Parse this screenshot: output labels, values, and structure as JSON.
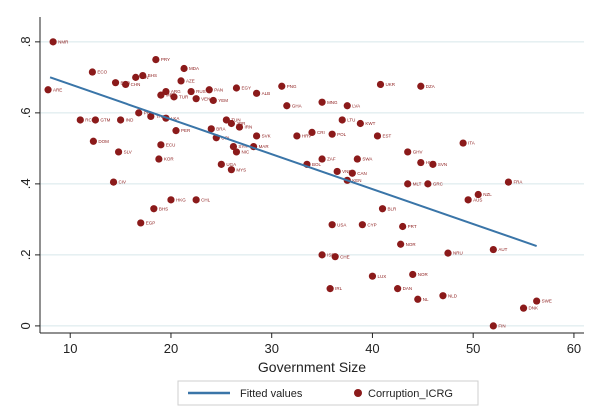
{
  "chart_data": {
    "type": "scatter",
    "xlabel": "Government Size",
    "ylabel": "",
    "xlim": [
      7,
      61
    ],
    "ylim": [
      -0.02,
      0.87
    ],
    "xticks": [
      10,
      20,
      30,
      40,
      50,
      60
    ],
    "yticks": [
      0,
      0.2,
      0.4,
      0.6,
      0.8
    ],
    "ytick_labels": [
      "0",
      ".2",
      ".4",
      ".6",
      ".8"
    ],
    "grid": true,
    "legend_position": "bottom",
    "colors": {
      "points": "#8b1a1a",
      "fit_line": "#3a75a8",
      "grid": "#d7e7ea"
    },
    "series": [
      {
        "name": "Fitted values",
        "type": "line",
        "x": [
          8,
          56.3
        ],
        "y": [
          0.7,
          0.225
        ]
      },
      {
        "name": "Corruption_ICRG",
        "type": "scatter",
        "points": [
          {
            "x": 8.3,
            "y": 0.8,
            "label": "NMR"
          },
          {
            "x": 7.8,
            "y": 0.665,
            "label": "ARE"
          },
          {
            "x": 12.2,
            "y": 0.715,
            "label": "ECO"
          },
          {
            "x": 11.0,
            "y": 0.58,
            "label": "RCT"
          },
          {
            "x": 12.5,
            "y": 0.58,
            "label": "GTM"
          },
          {
            "x": 12.3,
            "y": 0.52,
            "label": "DOM"
          },
          {
            "x": 14.5,
            "y": 0.685,
            "label": "BGD"
          },
          {
            "x": 15.0,
            "y": 0.58,
            "label": "IND"
          },
          {
            "x": 15.5,
            "y": 0.68,
            "label": "CHN"
          },
          {
            "x": 16.5,
            "y": 0.7,
            "label": "IDN"
          },
          {
            "x": 17.2,
            "y": 0.705,
            "label": "BHS"
          },
          {
            "x": 18.5,
            "y": 0.75,
            "label": "PRY"
          },
          {
            "x": 14.8,
            "y": 0.49,
            "label": "SLV"
          },
          {
            "x": 14.3,
            "y": 0.405,
            "label": "CIV"
          },
          {
            "x": 16.8,
            "y": 0.6,
            "label": "PHL"
          },
          {
            "x": 18.0,
            "y": 0.59,
            "label": "THA"
          },
          {
            "x": 19.0,
            "y": 0.65,
            "label": "MEX"
          },
          {
            "x": 19.5,
            "y": 0.66,
            "label": "ARG"
          },
          {
            "x": 20.3,
            "y": 0.645,
            "label": "TUR"
          },
          {
            "x": 21.0,
            "y": 0.69,
            "label": "AZE"
          },
          {
            "x": 21.3,
            "y": 0.725,
            "label": "MDA"
          },
          {
            "x": 22.0,
            "y": 0.66,
            "label": "RUS"
          },
          {
            "x": 22.5,
            "y": 0.64,
            "label": "VEN"
          },
          {
            "x": 23.8,
            "y": 0.665,
            "label": "PAN"
          },
          {
            "x": 24.2,
            "y": 0.635,
            "label": "YEM"
          },
          {
            "x": 26.5,
            "y": 0.67,
            "label": "EGY"
          },
          {
            "x": 28.5,
            "y": 0.655,
            "label": "ALB"
          },
          {
            "x": 31.0,
            "y": 0.675,
            "label": "PNG"
          },
          {
            "x": 31.5,
            "y": 0.62,
            "label": "GHA"
          },
          {
            "x": 35.0,
            "y": 0.63,
            "label": "MNG"
          },
          {
            "x": 37.5,
            "y": 0.62,
            "label": "LVA"
          },
          {
            "x": 40.8,
            "y": 0.68,
            "label": "UKR"
          },
          {
            "x": 44.8,
            "y": 0.675,
            "label": "DZA"
          },
          {
            "x": 19.5,
            "y": 0.585,
            "label": "LKA"
          },
          {
            "x": 20.5,
            "y": 0.55,
            "label": "PER"
          },
          {
            "x": 19.0,
            "y": 0.51,
            "label": "ECU"
          },
          {
            "x": 18.8,
            "y": 0.47,
            "label": "KOR"
          },
          {
            "x": 24.0,
            "y": 0.555,
            "label": "BRA"
          },
          {
            "x": 24.5,
            "y": 0.53,
            "label": "COL"
          },
          {
            "x": 25.5,
            "y": 0.58,
            "label": "TUN"
          },
          {
            "x": 26.0,
            "y": 0.57,
            "label": "JOR"
          },
          {
            "x": 26.8,
            "y": 0.56,
            "label": "IRN"
          },
          {
            "x": 26.2,
            "y": 0.505,
            "label": "SYR"
          },
          {
            "x": 26.5,
            "y": 0.49,
            "label": "NIC"
          },
          {
            "x": 28.5,
            "y": 0.535,
            "label": "SVK"
          },
          {
            "x": 28.2,
            "y": 0.505,
            "label": "MAR"
          },
          {
            "x": 25.0,
            "y": 0.455,
            "label": "UGA"
          },
          {
            "x": 26.0,
            "y": 0.44,
            "label": "MYS"
          },
          {
            "x": 32.5,
            "y": 0.535,
            "label": "HRV"
          },
          {
            "x": 34.0,
            "y": 0.545,
            "label": "CRI"
          },
          {
            "x": 36.0,
            "y": 0.54,
            "label": "POL"
          },
          {
            "x": 37.0,
            "y": 0.58,
            "label": "LTU"
          },
          {
            "x": 38.8,
            "y": 0.57,
            "label": "KWT"
          },
          {
            "x": 40.5,
            "y": 0.535,
            "label": "EST"
          },
          {
            "x": 49.0,
            "y": 0.515,
            "label": "ITA"
          },
          {
            "x": 33.5,
            "y": 0.455,
            "label": "BOL"
          },
          {
            "x": 35.0,
            "y": 0.47,
            "label": "ZAF"
          },
          {
            "x": 36.5,
            "y": 0.435,
            "label": "VNM"
          },
          {
            "x": 37.5,
            "y": 0.41,
            "label": "KEN"
          },
          {
            "x": 38.0,
            "y": 0.43,
            "label": "CAN"
          },
          {
            "x": 38.5,
            "y": 0.47,
            "label": "SWA"
          },
          {
            "x": 43.5,
            "y": 0.49,
            "label": "GHV"
          },
          {
            "x": 44.8,
            "y": 0.46,
            "label": "HUN"
          },
          {
            "x": 46.0,
            "y": 0.455,
            "label": "SVN"
          },
          {
            "x": 43.5,
            "y": 0.4,
            "label": "MLT"
          },
          {
            "x": 45.5,
            "y": 0.4,
            "label": "GRC"
          },
          {
            "x": 50.5,
            "y": 0.37,
            "label": "NZL"
          },
          {
            "x": 49.5,
            "y": 0.355,
            "label": "AUS"
          },
          {
            "x": 53.5,
            "y": 0.405,
            "label": "FRA"
          },
          {
            "x": 17.0,
            "y": 0.29,
            "label": "EGP"
          },
          {
            "x": 18.3,
            "y": 0.33,
            "label": "BHS"
          },
          {
            "x": 20.0,
            "y": 0.355,
            "label": "HKG"
          },
          {
            "x": 22.5,
            "y": 0.355,
            "label": "CHL"
          },
          {
            "x": 36.0,
            "y": 0.285,
            "label": "USA"
          },
          {
            "x": 39.0,
            "y": 0.285,
            "label": "CYP"
          },
          {
            "x": 41.0,
            "y": 0.33,
            "label": "BLR"
          },
          {
            "x": 43.0,
            "y": 0.28,
            "label": "PRT"
          },
          {
            "x": 42.8,
            "y": 0.23,
            "label": "NOR"
          },
          {
            "x": 47.5,
            "y": 0.205,
            "label": "NRU"
          },
          {
            "x": 52.0,
            "y": 0.215,
            "label": "AUT"
          },
          {
            "x": 35.0,
            "y": 0.2,
            "label": "ISR"
          },
          {
            "x": 36.3,
            "y": 0.195,
            "label": "CHE"
          },
          {
            "x": 40.0,
            "y": 0.14,
            "label": "LUX"
          },
          {
            "x": 44.0,
            "y": 0.145,
            "label": "NOR"
          },
          {
            "x": 42.5,
            "y": 0.105,
            "label": "DAN"
          },
          {
            "x": 35.8,
            "y": 0.105,
            "label": "IRL"
          },
          {
            "x": 44.5,
            "y": 0.075,
            "label": "NL"
          },
          {
            "x": 47.0,
            "y": 0.085,
            "label": "NLD"
          },
          {
            "x": 55.0,
            "y": 0.05,
            "label": "DNK"
          },
          {
            "x": 56.3,
            "y": 0.07,
            "label": "SWE"
          },
          {
            "x": 52.0,
            "y": 0.0,
            "label": "FIN"
          }
        ]
      }
    ],
    "legend": [
      {
        "label": "Fitted values",
        "kind": "line"
      },
      {
        "label": "Corruption_ICRG",
        "kind": "marker"
      }
    ]
  }
}
